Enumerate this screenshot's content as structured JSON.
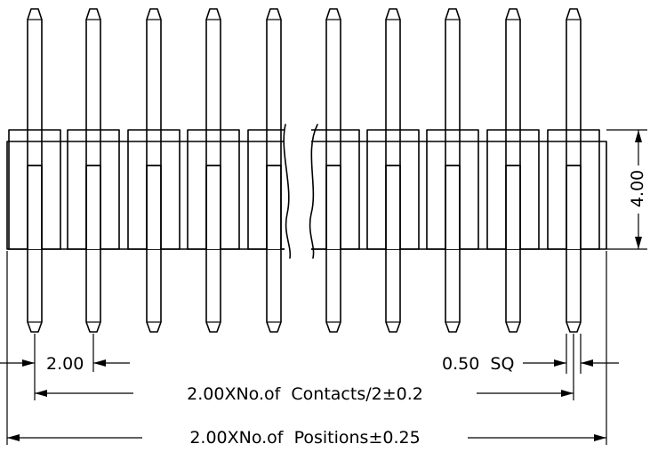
{
  "drawing": {
    "background": "#ffffff",
    "line_color": "#000000",
    "pin_count_shown": 10,
    "labels": {
      "pitch": "2.00",
      "pin_size": "0.50  SQ",
      "height": "4.00",
      "contacts_span": "2.00XNo.of  Contacts/2±0.2",
      "positions_span": "2.00XNo.of  Positions±0.25"
    }
  }
}
